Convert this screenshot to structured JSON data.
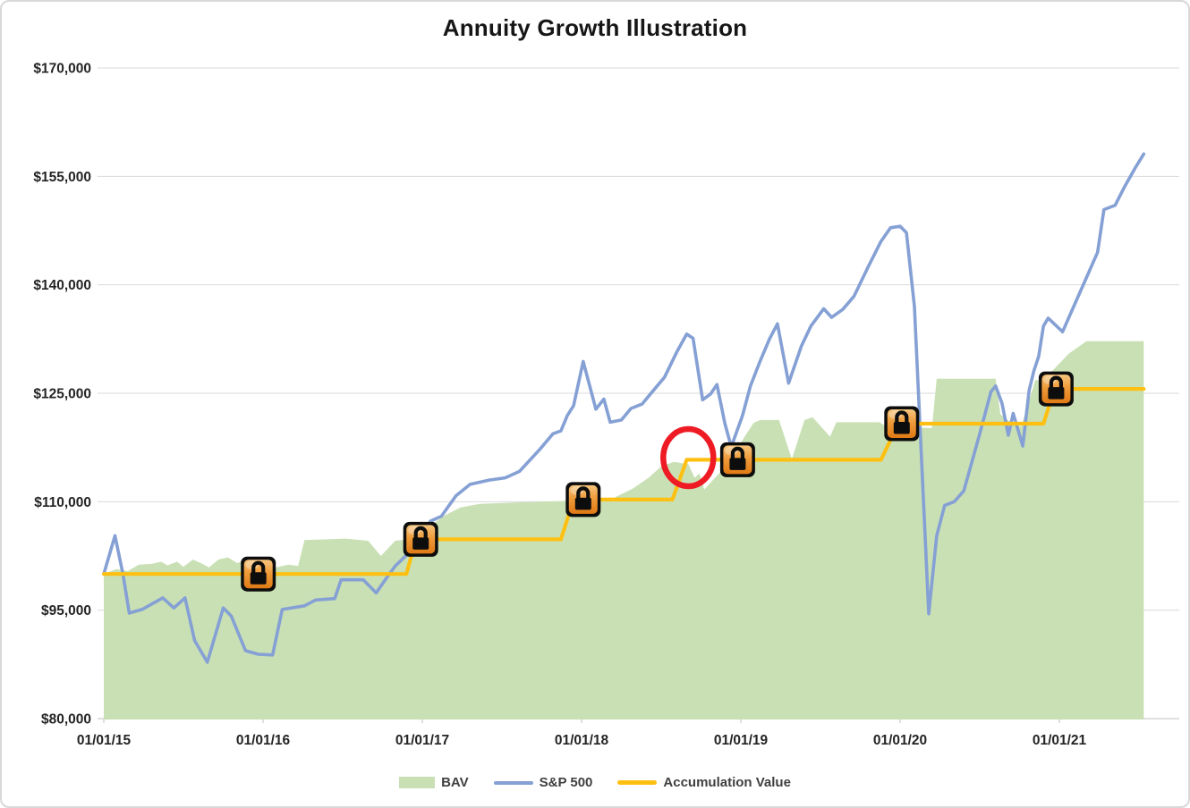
{
  "chart_data": {
    "type": "combo",
    "title": "Annuity Growth Illustration",
    "x_axis": {
      "labels": [
        "01/01/15",
        "01/01/16",
        "01/01/17",
        "01/01/18",
        "01/01/19",
        "01/01/20",
        "01/01/21"
      ],
      "unit": "date"
    },
    "y_axis": {
      "min": 80000,
      "max": 170000,
      "step": 15000,
      "tick_labels": [
        "$170,000",
        "$155,000",
        "$140,000",
        "$125,000",
        "$110,000",
        "$95,000",
        "$80,000"
      ]
    },
    "grid": "horizontal",
    "legend_position": "bottom",
    "series": [
      {
        "name": "BAV",
        "type": "area",
        "color": "#c9e0b5",
        "points": [
          [
            0.0,
            100000
          ],
          [
            0.08,
            100700
          ],
          [
            0.15,
            100400
          ],
          [
            0.22,
            101300
          ],
          [
            0.3,
            101400
          ],
          [
            0.36,
            101700
          ],
          [
            0.4,
            101200
          ],
          [
            0.46,
            101700
          ],
          [
            0.5,
            101000
          ],
          [
            0.56,
            102000
          ],
          [
            0.62,
            101400
          ],
          [
            0.66,
            100900
          ],
          [
            0.72,
            102000
          ],
          [
            0.78,
            102300
          ],
          [
            0.84,
            101500
          ],
          [
            0.89,
            102100
          ],
          [
            0.95,
            101200
          ],
          [
            1.02,
            101800
          ],
          [
            1.08,
            100900
          ],
          [
            1.16,
            101300
          ],
          [
            1.22,
            101100
          ],
          [
            1.26,
            104700
          ],
          [
            1.4,
            104800
          ],
          [
            1.52,
            104900
          ],
          [
            1.66,
            104600
          ],
          [
            1.74,
            102500
          ],
          [
            1.83,
            104600
          ],
          [
            1.92,
            104800
          ],
          [
            1.99,
            105200
          ],
          [
            2.06,
            106800
          ],
          [
            2.14,
            108100
          ],
          [
            2.24,
            109200
          ],
          [
            2.36,
            109700
          ],
          [
            2.6,
            109900
          ],
          [
            2.88,
            110100
          ],
          [
            3.0,
            110300
          ],
          [
            3.2,
            110500
          ],
          [
            3.32,
            111800
          ],
          [
            3.42,
            113300
          ],
          [
            3.5,
            114900
          ],
          [
            3.58,
            115500
          ],
          [
            3.64,
            115300
          ],
          [
            3.67,
            115200
          ],
          [
            3.71,
            113300
          ],
          [
            3.74,
            113900
          ],
          [
            3.77,
            111700
          ],
          [
            3.82,
            112900
          ],
          [
            3.88,
            114300
          ],
          [
            3.96,
            116700
          ],
          [
            4.03,
            119200
          ],
          [
            4.08,
            120900
          ],
          [
            4.12,
            121300
          ],
          [
            4.24,
            121300
          ],
          [
            4.32,
            115900
          ],
          [
            4.4,
            121300
          ],
          [
            4.45,
            121700
          ],
          [
            4.56,
            119000
          ],
          [
            4.6,
            121000
          ],
          [
            4.87,
            121000
          ],
          [
            4.92,
            120300
          ],
          [
            5.2,
            120200
          ],
          [
            5.23,
            127000
          ],
          [
            5.6,
            127000
          ],
          [
            5.63,
            122100
          ],
          [
            5.7,
            120900
          ],
          [
            5.76,
            120400
          ],
          [
            5.85,
            126900
          ],
          [
            5.89,
            126600
          ],
          [
            5.96,
            128200
          ],
          [
            6.06,
            130500
          ],
          [
            6.17,
            132200
          ],
          [
            6.53,
            132200
          ]
        ]
      },
      {
        "name": "S&P 500",
        "type": "line",
        "color": "#85a0d4",
        "points": [
          [
            0.0,
            100000
          ],
          [
            0.07,
            105300
          ],
          [
            0.12,
            100000
          ],
          [
            0.16,
            94600
          ],
          [
            0.24,
            95100
          ],
          [
            0.37,
            96700
          ],
          [
            0.44,
            95300
          ],
          [
            0.51,
            96700
          ],
          [
            0.57,
            90800
          ],
          [
            0.65,
            87800
          ],
          [
            0.75,
            95300
          ],
          [
            0.8,
            94200
          ],
          [
            0.89,
            89400
          ],
          [
            0.97,
            88900
          ],
          [
            1.06,
            88800
          ],
          [
            1.12,
            95100
          ],
          [
            1.26,
            95600
          ],
          [
            1.33,
            96400
          ],
          [
            1.45,
            96600
          ],
          [
            1.49,
            99200
          ],
          [
            1.63,
            99200
          ],
          [
            1.71,
            97400
          ],
          [
            1.78,
            99600
          ],
          [
            1.83,
            101100
          ],
          [
            1.9,
            102600
          ],
          [
            1.98,
            104300
          ],
          [
            2.05,
            107300
          ],
          [
            2.12,
            108000
          ],
          [
            2.21,
            110800
          ],
          [
            2.3,
            112400
          ],
          [
            2.42,
            113000
          ],
          [
            2.52,
            113300
          ],
          [
            2.61,
            114200
          ],
          [
            2.74,
            117300
          ],
          [
            2.82,
            119400
          ],
          [
            2.87,
            119800
          ],
          [
            2.91,
            121900
          ],
          [
            2.95,
            123300
          ],
          [
            3.01,
            129400
          ],
          [
            3.09,
            122800
          ],
          [
            3.14,
            124200
          ],
          [
            3.18,
            121000
          ],
          [
            3.25,
            121300
          ],
          [
            3.31,
            122900
          ],
          [
            3.38,
            123500
          ],
          [
            3.44,
            125100
          ],
          [
            3.52,
            127200
          ],
          [
            3.6,
            130800
          ],
          [
            3.66,
            133200
          ],
          [
            3.7,
            132600
          ],
          [
            3.76,
            124100
          ],
          [
            3.81,
            124900
          ],
          [
            3.85,
            126200
          ],
          [
            3.9,
            120800
          ],
          [
            3.94,
            117600
          ],
          [
            4.01,
            121900
          ],
          [
            4.06,
            126000
          ],
          [
            4.12,
            129400
          ],
          [
            4.18,
            132500
          ],
          [
            4.23,
            134600
          ],
          [
            4.3,
            126400
          ],
          [
            4.38,
            131500
          ],
          [
            4.44,
            134300
          ],
          [
            4.52,
            136700
          ],
          [
            4.57,
            135500
          ],
          [
            4.64,
            136600
          ],
          [
            4.71,
            138400
          ],
          [
            4.8,
            142500
          ],
          [
            4.88,
            146000
          ],
          [
            4.94,
            147900
          ],
          [
            5.0,
            148100
          ],
          [
            5.04,
            147200
          ],
          [
            5.09,
            137000
          ],
          [
            5.18,
            94500
          ],
          [
            5.23,
            105300
          ],
          [
            5.28,
            109500
          ],
          [
            5.34,
            110000
          ],
          [
            5.4,
            111500
          ],
          [
            5.5,
            119400
          ],
          [
            5.57,
            125200
          ],
          [
            5.6,
            126000
          ],
          [
            5.64,
            123600
          ],
          [
            5.68,
            119200
          ],
          [
            5.71,
            122200
          ],
          [
            5.77,
            117700
          ],
          [
            5.81,
            125400
          ],
          [
            5.84,
            128100
          ],
          [
            5.87,
            130100
          ],
          [
            5.9,
            134300
          ],
          [
            5.93,
            135400
          ],
          [
            6.02,
            133500
          ],
          [
            6.1,
            137500
          ],
          [
            6.16,
            140500
          ],
          [
            6.24,
            144500
          ],
          [
            6.28,
            150400
          ],
          [
            6.35,
            151000
          ],
          [
            6.41,
            153600
          ],
          [
            6.48,
            156300
          ],
          [
            6.53,
            158100
          ]
        ]
      },
      {
        "name": "Accumulation Value",
        "type": "line",
        "color": "#fdc012",
        "points": [
          [
            0.0,
            100000
          ],
          [
            1.9,
            100000
          ],
          [
            1.96,
            104800
          ],
          [
            2.87,
            104800
          ],
          [
            2.95,
            110300
          ],
          [
            3.57,
            110300
          ],
          [
            3.66,
            115800
          ],
          [
            4.88,
            115800
          ],
          [
            4.99,
            120800
          ],
          [
            5.9,
            120800
          ],
          [
            5.97,
            125600
          ],
          [
            6.53,
            125600
          ]
        ]
      }
    ],
    "lock_icons": {
      "icon": "padlock",
      "border_color": "#0d0d0d",
      "fill_top": "#f6c57e",
      "fill_bottom": "#e07a15",
      "points": [
        [
          0.97,
          100000
        ],
        [
          1.99,
          104800
        ],
        [
          3.01,
          110300
        ],
        [
          3.98,
          115800
        ],
        [
          5.01,
          120800
        ],
        [
          5.98,
          125600
        ]
      ]
    },
    "annotation": {
      "shape": "ellipse",
      "color": "#ee1b24",
      "t": 3.67,
      "value": 116100
    }
  }
}
